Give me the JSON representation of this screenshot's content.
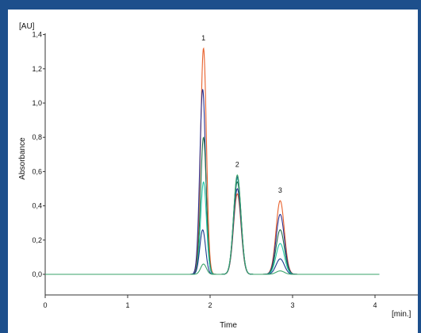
{
  "chart_data": {
    "type": "line",
    "title": "",
    "xlabel": "Time",
    "ylabel": "Absorbance",
    "x_unit": "[min.]",
    "y_unit": "[AU]",
    "xlim": [
      0,
      4.5
    ],
    "ylim": [
      -0.05,
      1.45
    ],
    "x_ticks": [
      "0",
      "1",
      "2",
      "3",
      "4"
    ],
    "x_tick_values": [
      0,
      1,
      2,
      3,
      4
    ],
    "y_ticks": [
      "0,0",
      "0,2",
      "0,4",
      "0,6",
      "0,8",
      "1,0",
      "1,2",
      "1,4"
    ],
    "y_tick_values": [
      0.0,
      0.2,
      0.4,
      0.6,
      0.8,
      1.0,
      1.2,
      1.4
    ],
    "grid": false,
    "peaks": [
      {
        "label": "1",
        "x": 1.92
      },
      {
        "label": "2",
        "x": 2.33
      },
      {
        "label": "3",
        "x": 2.85
      }
    ],
    "series": [
      {
        "color": "#e8612c",
        "heights": [
          1.32,
          0.47,
          0.43
        ],
        "centers": [
          1.92,
          2.33,
          2.85
        ]
      },
      {
        "color": "#2a2f8f",
        "heights": [
          1.08,
          0.5,
          0.35
        ],
        "centers": [
          1.91,
          2.33,
          2.85
        ]
      },
      {
        "color": "#1f6f4a",
        "heights": [
          0.8,
          0.54,
          0.26
        ],
        "centers": [
          1.92,
          2.33,
          2.85
        ]
      },
      {
        "color": "#22c7a5",
        "heights": [
          0.54,
          0.56,
          0.18
        ],
        "centers": [
          1.92,
          2.33,
          2.85
        ]
      },
      {
        "color": "#1b3a8c",
        "heights": [
          0.26,
          0.57,
          0.09
        ],
        "centers": [
          1.91,
          2.33,
          2.85
        ]
      },
      {
        "color": "#3aa36a",
        "heights": [
          0.06,
          0.58,
          0.02
        ],
        "centers": [
          1.92,
          2.33,
          2.85
        ]
      }
    ]
  }
}
